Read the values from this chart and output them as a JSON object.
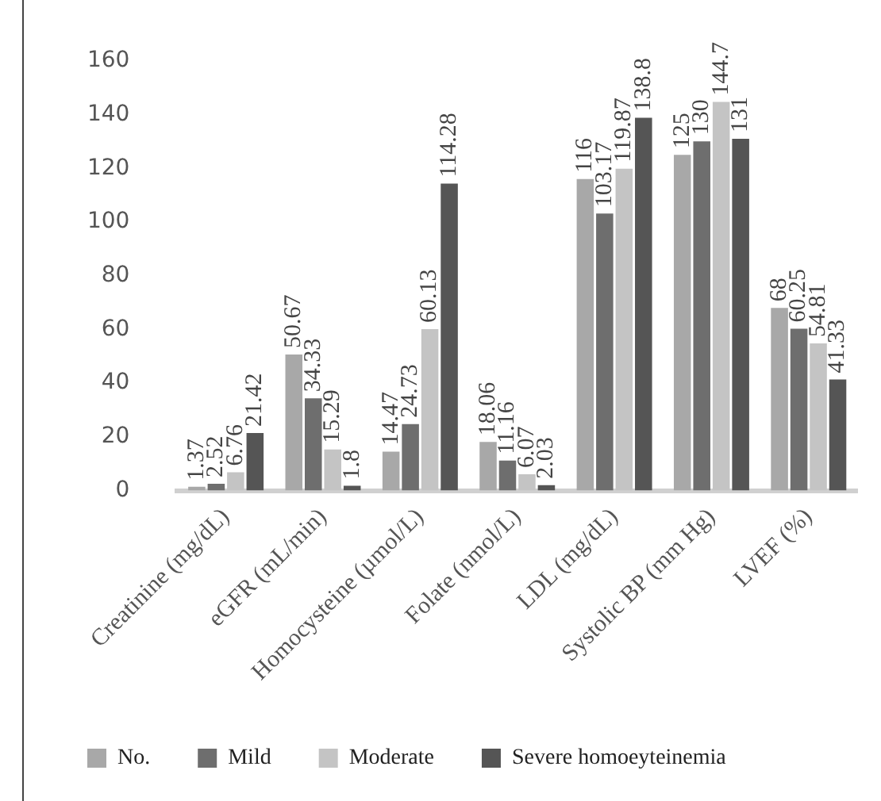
{
  "chart_data": {
    "type": "bar",
    "categories": [
      "Creatinine (mg/dL)",
      "eGFR (mL/min)",
      "Homocysteine (µmol/L)",
      "Folate (nmol/L)",
      "LDL (mg/dL)",
      "Systolic BP (mm Hg)",
      "LVEF (%)"
    ],
    "series": [
      {
        "name": "No.",
        "color": "#a8a8a8",
        "values": [
          1.37,
          50.67,
          14.47,
          18.06,
          116,
          125,
          68
        ]
      },
      {
        "name": "Mild",
        "color": "#6e6e6e",
        "values": [
          2.52,
          34.33,
          24.73,
          11.16,
          103.17,
          130,
          60.25
        ]
      },
      {
        "name": "Moderate",
        "color": "#c4c4c4",
        "values": [
          6.76,
          15.29,
          60.13,
          6.07,
          119.87,
          144.7,
          54.81
        ]
      },
      {
        "name": "Severe homoeyteinemia",
        "color": "#555555",
        "values": [
          21.42,
          1.8,
          114.28,
          2.03,
          138.8,
          131,
          41.33
        ]
      }
    ],
    "ylim": [
      0,
      160
    ],
    "yticks": [
      0,
      20,
      40,
      60,
      80,
      100,
      120,
      140,
      160
    ],
    "grid": false,
    "legend": "bottom",
    "data_labels": true
  }
}
